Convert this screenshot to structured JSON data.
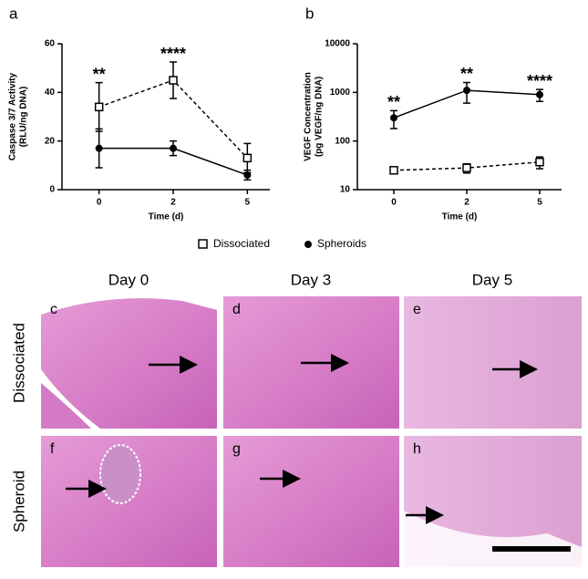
{
  "chart_data": [
    {
      "type": "line",
      "panel": "a",
      "ylabel": [
        "Caspase 3/7 Activity",
        "(RLU/ng DNA)"
      ],
      "xlabel": "Time (d)",
      "categories": [
        "0",
        "2",
        "5"
      ],
      "ylim": [
        0,
        60
      ],
      "yticks": [
        0,
        20,
        40,
        60
      ],
      "log": false,
      "series": [
        {
          "name": "Dissociated",
          "color": "#000000",
          "line_style": "dashed",
          "marker": "square",
          "values": [
            34,
            45,
            13
          ],
          "errors": [
            10,
            7.5,
            6
          ]
        },
        {
          "name": "Spheroids",
          "color": "#000000",
          "line_style": "solid",
          "marker": "circle",
          "values": [
            17,
            17,
            6
          ],
          "errors": [
            8,
            3,
            2
          ]
        }
      ],
      "annotations": [
        {
          "text": "**",
          "category": "0"
        },
        {
          "text": "****",
          "category": "2"
        }
      ]
    },
    {
      "type": "line",
      "panel": "b",
      "ylabel": [
        "VEGF Concentration",
        "(pg VEGF/ng DNA)"
      ],
      "xlabel": "Time (d)",
      "categories": [
        "0",
        "2",
        "5"
      ],
      "ylim": [
        10,
        10000
      ],
      "yticks": [
        10,
        100,
        1000,
        10000
      ],
      "log": true,
      "series": [
        {
          "name": "Dissociated",
          "color": "#000000",
          "line_style": "dashed",
          "marker": "square",
          "values": [
            25,
            28,
            37
          ],
          "errors": [
            3,
            6,
            10
          ]
        },
        {
          "name": "Spheroids",
          "color": "#000000",
          "line_style": "solid",
          "marker": "circle",
          "values": [
            300,
            1100,
            900
          ],
          "errors": [
            120,
            500,
            250
          ]
        }
      ],
      "annotations": [
        {
          "text": "**",
          "category": "0"
        },
        {
          "text": "**",
          "category": "2"
        },
        {
          "text": "****",
          "category": "5"
        }
      ]
    }
  ],
  "figure": {
    "columns": [
      "Day 0",
      "Day 3",
      "Day 5"
    ],
    "rows": [
      "Dissociated",
      "Spheroid"
    ],
    "panels": [
      "c",
      "d",
      "e",
      "f",
      "g",
      "h"
    ]
  }
}
